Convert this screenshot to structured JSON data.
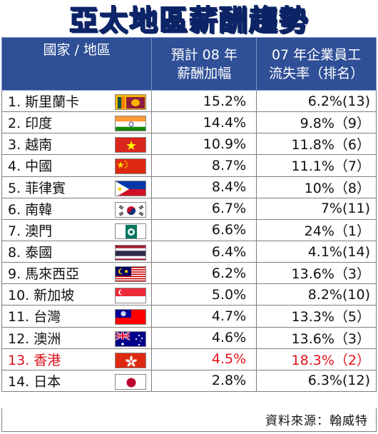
{
  "title": "亞太地區薪酬趨勢",
  "source": "資料來源：翰威特",
  "colors": {
    "header_bg": "#2f4f97",
    "title": "#1a3a8c",
    "highlight": "#e0101a"
  },
  "chart_data": {
    "type": "table",
    "title": "亞太地區薪酬趨勢",
    "columns": [
      "國家 / 地區",
      "預計 08 年\n薪酬加幅",
      "07 年企業員工\n流失率（排名）"
    ],
    "rows": [
      {
        "name": "1. 斯里蘭卡",
        "flag": "sri-lanka-flag",
        "raise": "15.2%",
        "turnover": "6.2%(13)"
      },
      {
        "name": "2. 印度",
        "flag": "india-flag",
        "raise": "14.4%",
        "turnover": "9.8%（9）"
      },
      {
        "name": "3. 越南",
        "flag": "vietnam-flag",
        "raise": "10.9%",
        "turnover": "11.8%（6）"
      },
      {
        "name": "4. 中國",
        "flag": "china-flag",
        "raise": "8.7%",
        "turnover": "11.1%（7）"
      },
      {
        "name": "5. 菲律賓",
        "flag": "philippines-flag",
        "raise": "8.4%",
        "turnover": "10%（8）"
      },
      {
        "name": "6. 南韓",
        "flag": "south-korea-flag",
        "raise": "6.7%",
        "turnover": "7%(11)"
      },
      {
        "name": "7. 澳門",
        "flag": "macau-flag",
        "raise": "6.6%",
        "turnover": "24%（1）"
      },
      {
        "name": "8. 泰國",
        "flag": "thailand-flag",
        "raise": "6.4%",
        "turnover": "4.1%(14)"
      },
      {
        "name": "9. 馬來西亞",
        "flag": "malaysia-flag",
        "raise": "6.2%",
        "turnover": "13.6%（3）"
      },
      {
        "name": "10. 新加坡",
        "flag": "singapore-flag",
        "raise": "5.0%",
        "turnover": "8.2%(10)"
      },
      {
        "name": "11. 台灣",
        "flag": "taiwan-flag",
        "raise": "4.7%",
        "turnover": "13.3%（5）"
      },
      {
        "name": "12. 澳洲",
        "flag": "australia-flag",
        "raise": "4.6%",
        "turnover": "13.6%（3）"
      },
      {
        "name": "13. 香港",
        "flag": "hong-kong-flag",
        "raise": "4.5%",
        "turnover": "18.3%（2）",
        "highlight": true
      },
      {
        "name": "14. 日本",
        "flag": "japan-flag",
        "raise": "2.8%",
        "turnover": "6.3%(12)"
      }
    ]
  }
}
